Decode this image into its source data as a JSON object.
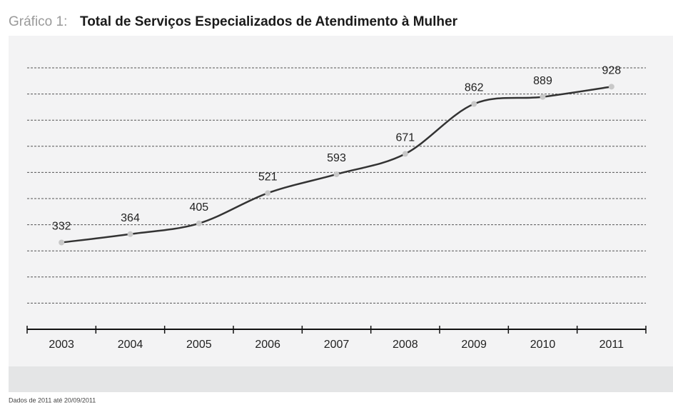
{
  "chart_data": {
    "type": "line",
    "title_prefix": "Gráfico 1:",
    "title": "Total de Serviços Especializados de Atendimento à Mulher",
    "categories": [
      "2003",
      "2004",
      "2005",
      "2006",
      "2007",
      "2008",
      "2009",
      "2010",
      "2011"
    ],
    "values": [
      332,
      364,
      405,
      521,
      593,
      671,
      862,
      889,
      928
    ],
    "color": "#333333",
    "ylim": [
      0,
      1000
    ],
    "yticks": [
      0,
      100,
      200,
      300,
      400,
      500,
      600,
      700,
      800,
      900,
      1000
    ],
    "grid": true,
    "footnote": "Dados de 2011 até 20/09/2011"
  }
}
